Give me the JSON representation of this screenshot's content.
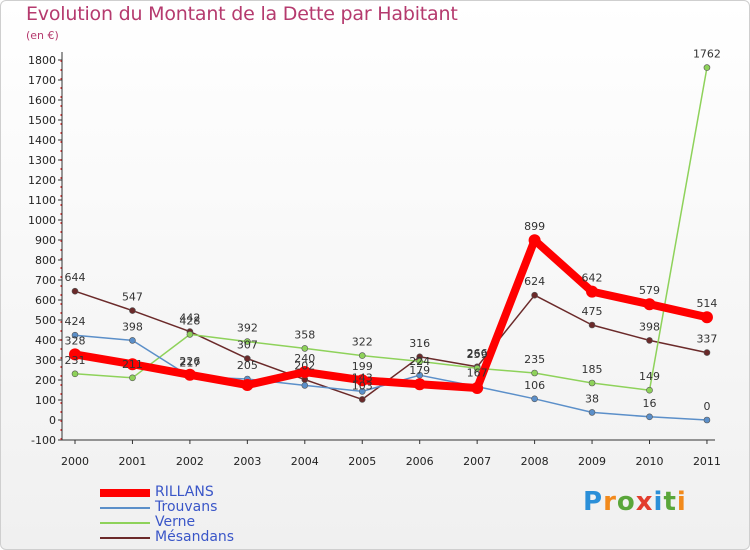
{
  "header": {
    "title": "Evolution du Montant de la Dette par Habitant",
    "subtitle": "(en €)"
  },
  "logo": {
    "text": "Proxiti",
    "colors": [
      "#2b8fd8",
      "#f28a1c",
      "#5aa63a",
      "#e23d2e",
      "#2b8fd8",
      "#5aa63a",
      "#f28a1c"
    ]
  },
  "chart_data": {
    "type": "line",
    "title": "Evolution du Montant de la Dette par Habitant",
    "subtitle": "(en €)",
    "x": [
      "2000",
      "2001",
      "2002",
      "2003",
      "2004",
      "2005",
      "2006",
      "2007",
      "2008",
      "2009",
      "2010",
      "2011"
    ],
    "yticks": [
      -100,
      0,
      100,
      200,
      300,
      400,
      500,
      600,
      700,
      800,
      900,
      1000,
      1100,
      1200,
      1300,
      1400,
      1500,
      1600,
      1700,
      1800
    ],
    "ylim": [
      -100,
      1800
    ],
    "grid": false,
    "legend_position": "bottom-left",
    "series": [
      {
        "name": "RILLANS",
        "color": "#ff0000",
        "values": [
          328,
          279,
          226,
          175,
          240,
          199,
          179,
          160,
          899,
          642,
          579,
          514
        ],
        "labels": [
          "328",
          "",
          "226",
          "",
          "240",
          "199",
          "179",
          "",
          "899",
          "642",
          "579",
          "514"
        ],
        "width": 8
      },
      {
        "name": "Trouvans",
        "color": "#5b8fc9",
        "values": [
          424,
          398,
          217,
          205,
          173,
          143,
          224,
          167,
          106,
          38,
          16,
          0
        ],
        "labels": [
          "424",
          "398",
          "217",
          "205",
          "",
          "143",
          "224",
          "167",
          "106",
          "38",
          "16",
          "0"
        ],
        "width": 1.5
      },
      {
        "name": "Verne",
        "color": "#8ed25a",
        "values": [
          231,
          211,
          428,
          392,
          358,
          322,
          293,
          259,
          235,
          185,
          149,
          1762
        ],
        "labels": [
          "231",
          "211",
          "428",
          "392",
          "358",
          "322",
          "",
          "259",
          "235",
          "185",
          "149",
          "1762"
        ],
        "width": 1.5
      },
      {
        "name": "Mésandans",
        "color": "#6b2a2a",
        "values": [
          644,
          547,
          442,
          307,
          202,
          103,
          316,
          266,
          624,
          475,
          398,
          337
        ],
        "labels": [
          "644",
          "547",
          "442",
          "307",
          "202",
          "103",
          "316",
          "266",
          "624",
          "475",
          "398",
          "337"
        ],
        "width": 1.5
      }
    ]
  }
}
